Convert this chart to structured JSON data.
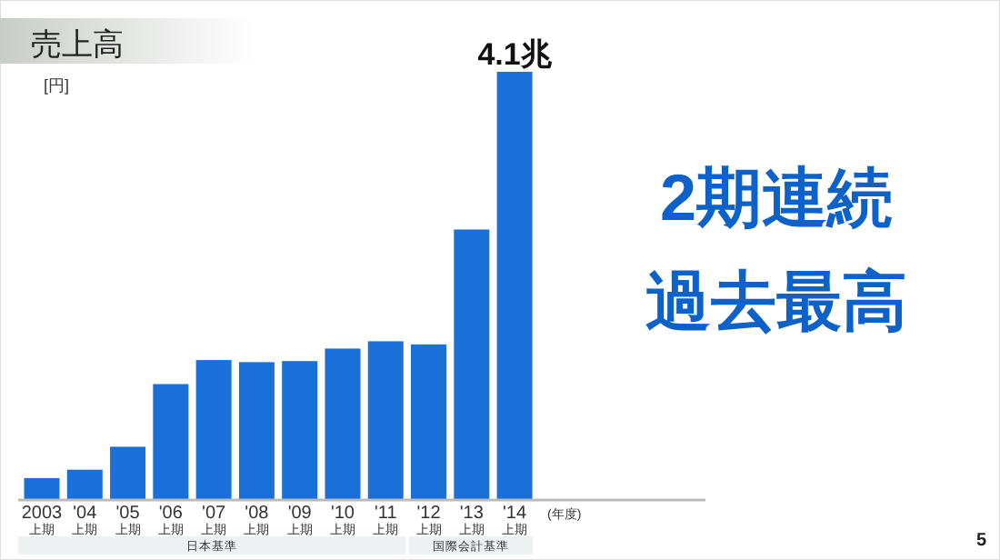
{
  "chart_data": {
    "type": "bar",
    "title": "売上高",
    "ylabel": "[円]",
    "xlabel": "(年度)",
    "categories": [
      "2003\n上期",
      "'04\n上期",
      "'05\n上期",
      "'06\n上期",
      "'07\n上期",
      "'08\n上期",
      "'09\n上期",
      "'10\n上期",
      "'11\n上期",
      "'12\n上期",
      "'13\n上期",
      "'14\n上期"
    ],
    "values": [
      0.21,
      0.29,
      0.51,
      1.11,
      1.34,
      1.32,
      1.33,
      1.45,
      1.52,
      1.49,
      2.59,
      4.1
    ],
    "value_labels": [
      null,
      null,
      null,
      null,
      null,
      null,
      null,
      null,
      null,
      null,
      null,
      "4.1兆"
    ],
    "color": "#1b6fd8",
    "annotations": [
      "日本基準",
      "国際会計基準",
      "2期連続",
      "過去最高",
      "5"
    ]
  }
}
